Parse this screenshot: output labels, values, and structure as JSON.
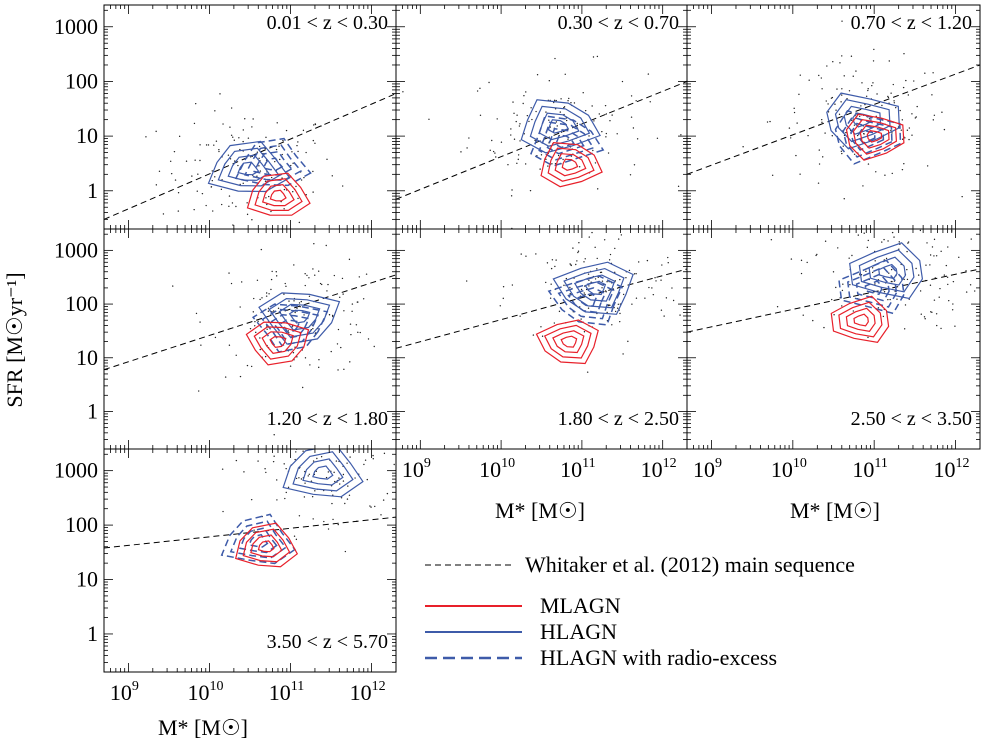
{
  "chart_data": {
    "type": "scatter",
    "xlabel": "M* [M☉]",
    "ylabel": "SFR [M☉yr⁻¹]",
    "xscale": "log",
    "yscale": "log",
    "xlim": [
      500000000,
      2000000000000
    ],
    "ylim": [
      0.2,
      2500
    ],
    "x_ticks": [
      {
        "value": 1000000000,
        "base": "10",
        "exp": "9"
      },
      {
        "value": 10000000000,
        "base": "10",
        "exp": "10"
      },
      {
        "value": 100000000000,
        "base": "10",
        "exp": "11"
      },
      {
        "value": 1000000000000,
        "base": "10",
        "exp": "12"
      }
    ],
    "y_ticks": [
      {
        "value": 1,
        "label": "1"
      },
      {
        "value": 10,
        "label": "10"
      },
      {
        "value": 100,
        "label": "100"
      },
      {
        "value": 1000,
        "label": "1000"
      }
    ],
    "legend": [
      {
        "label": "Whitaker et al. (2012) main sequence",
        "style": "black-dashed"
      },
      {
        "label": "MLAGN",
        "style": "red-solid"
      },
      {
        "label": "HLAGN",
        "style": "blue-solid"
      },
      {
        "label": "HLAGN with radio-excess",
        "style": "blue-dashed"
      }
    ],
    "colors": {
      "MLAGN": "#e8202a",
      "HLAGN": "#3e5ba9",
      "main_sequence": "#000000"
    },
    "panels": [
      {
        "z_label": "0.01 < z < 0.30",
        "ms": [
          [
            500000000.0,
            0.3
          ],
          [
            2000000000000.0,
            60
          ]
        ],
        "mlagn_center": [
          70000000000.0,
          0.8
        ],
        "hlagn_center": [
          30000000000.0,
          2.5
        ],
        "radio_center": [
          60000000000.0,
          3
        ]
      },
      {
        "z_label": "0.30 < z < 0.70",
        "ms": [
          [
            500000000.0,
            0.7
          ],
          [
            2000000000000.0,
            100
          ]
        ],
        "mlagn_center": [
          70000000000.0,
          3
        ],
        "hlagn_center": [
          50000000000.0,
          15
        ],
        "radio_center": [
          60000000000.0,
          8
        ]
      },
      {
        "z_label": "0.70 < z < 1.20",
        "ms": [
          [
            500000000.0,
            2
          ],
          [
            2000000000000.0,
            200
          ]
        ],
        "mlagn_center": [
          100000000000.0,
          10
        ],
        "hlagn_center": [
          70000000000.0,
          20
        ],
        "radio_center": [
          80000000000.0,
          10
        ]
      },
      {
        "z_label": "1.20 < z < 1.80",
        "ms": [
          [
            500000000.0,
            6
          ],
          [
            2000000000000.0,
            350
          ]
        ],
        "mlagn_center": [
          70000000000.0,
          20
        ],
        "hlagn_center": [
          130000000000.0,
          60
        ],
        "radio_center": [
          100000000000.0,
          40
        ]
      },
      {
        "z_label": "1.80 < z < 2.50",
        "ms": [
          [
            500000000.0,
            15
          ],
          [
            2000000000000.0,
            450
          ]
        ],
        "mlagn_center": [
          70000000000.0,
          20
        ],
        "hlagn_center": [
          150000000000.0,
          200
        ],
        "radio_center": [
          120000000000.0,
          120
        ]
      },
      {
        "z_label": "2.50 < z < 3.50",
        "ms": [
          [
            500000000.0,
            30
          ],
          [
            2000000000000.0,
            450
          ]
        ],
        "mlagn_center": [
          70000000000.0,
          50
        ],
        "hlagn_center": [
          150000000000.0,
          400
        ],
        "radio_center": [
          100000000000.0,
          200
        ]
      },
      {
        "z_label": "3.50 < z < 5.70",
        "ms": [
          [
            500000000.0,
            38
          ],
          [
            2000000000000.0,
            140
          ]
        ],
        "mlagn_center": [
          50000000000.0,
          40
        ],
        "hlagn_center": [
          250000000000.0,
          900
        ],
        "radio_center": [
          40000000000.0,
          50
        ]
      }
    ]
  }
}
